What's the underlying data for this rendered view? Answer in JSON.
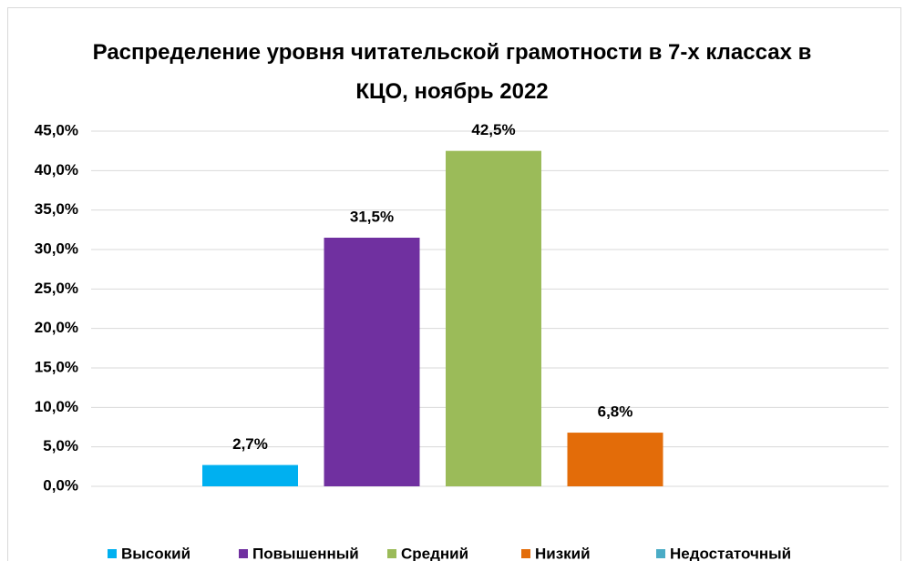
{
  "chart_data": {
    "type": "bar",
    "title": "Распределение уровня читательской грамотности в 7-х классах в КЦО, ноябрь 2022",
    "series": [
      {
        "name": "Высокий",
        "color": "#00b0f0",
        "values": [
          2.7
        ],
        "value_labels": [
          "2,7%"
        ]
      },
      {
        "name": "Повышенный",
        "color": "#7030a0",
        "values": [
          31.5
        ],
        "value_labels": [
          "31,5%"
        ]
      },
      {
        "name": "Средний",
        "color": "#9bbb59",
        "values": [
          42.5
        ],
        "value_labels": [
          "42,5%"
        ]
      },
      {
        "name": "Низкий",
        "color": "#e36c09",
        "values": [
          6.8
        ],
        "value_labels": [
          "6,8%"
        ]
      },
      {
        "name": "Недостаточный",
        "color": "#4bacc6",
        "values": [
          0
        ],
        "value_labels": [
          null
        ]
      }
    ],
    "ylim": [
      0,
      45
    ],
    "yticks": [
      {
        "value": 0,
        "label": "0,0%"
      },
      {
        "value": 5,
        "label": "5,0%"
      },
      {
        "value": 10,
        "label": "10,0%"
      },
      {
        "value": 15,
        "label": "15,0%"
      },
      {
        "value": 20,
        "label": "20,0%"
      },
      {
        "value": 25,
        "label": "25,0%"
      },
      {
        "value": 30,
        "label": "30,0%"
      },
      {
        "value": 35,
        "label": "35,0%"
      },
      {
        "value": 40,
        "label": "40,0%"
      },
      {
        "value": 45,
        "label": "45,0%"
      }
    ],
    "grid": true,
    "legend": "bottom"
  }
}
